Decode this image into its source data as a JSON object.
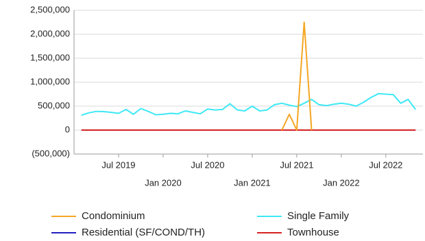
{
  "chart_data": {
    "type": "line",
    "x": [
      "2019-02",
      "2019-03",
      "2019-04",
      "2019-05",
      "2019-06",
      "2019-07",
      "2019-08",
      "2019-09",
      "2019-10",
      "2019-11",
      "2019-12",
      "2020-01",
      "2020-02",
      "2020-03",
      "2020-04",
      "2020-05",
      "2020-06",
      "2020-07",
      "2020-08",
      "2020-09",
      "2020-10",
      "2020-11",
      "2020-12",
      "2021-01",
      "2021-02",
      "2021-03",
      "2021-04",
      "2021-05",
      "2021-06",
      "2021-07",
      "2021-08",
      "2021-09",
      "2021-10",
      "2021-11",
      "2021-12",
      "2022-01",
      "2022-02",
      "2022-03",
      "2022-04",
      "2022-05",
      "2022-06",
      "2022-07",
      "2022-08",
      "2022-09",
      "2022-10",
      "2022-11"
    ],
    "series": [
      {
        "name": "Condominium",
        "color": "#f5a623",
        "values": [
          null,
          null,
          null,
          null,
          null,
          null,
          null,
          null,
          null,
          null,
          null,
          null,
          null,
          null,
          null,
          null,
          null,
          null,
          null,
          null,
          null,
          null,
          null,
          null,
          null,
          null,
          null,
          0,
          330000,
          0,
          2250000,
          0,
          null,
          null,
          null,
          null,
          null,
          null,
          null,
          null,
          null,
          null,
          null,
          null,
          null,
          null
        ]
      },
      {
        "name": "Single Family",
        "color": "#3ee8f5",
        "values": [
          310000,
          360000,
          390000,
          385000,
          370000,
          350000,
          430000,
          330000,
          450000,
          390000,
          320000,
          330000,
          350000,
          340000,
          400000,
          370000,
          340000,
          440000,
          420000,
          430000,
          550000,
          420000,
          400000,
          500000,
          400000,
          420000,
          530000,
          560000,
          520000,
          490000,
          560000,
          640000,
          530000,
          510000,
          540000,
          560000,
          540000,
          500000,
          580000,
          680000,
          760000,
          750000,
          740000,
          560000,
          640000,
          430000
        ]
      },
      {
        "name": "Residential (SF/COND/TH)",
        "color": "#1f1fbf",
        "values": [
          0,
          0,
          0,
          0,
          0,
          0,
          0,
          0,
          0,
          0,
          0,
          0,
          0,
          0,
          0,
          0,
          0,
          0,
          0,
          0,
          0,
          0,
          0,
          0,
          0,
          0,
          0,
          0,
          0,
          0,
          0,
          0,
          0,
          0,
          0,
          0,
          0,
          0,
          0,
          0,
          0,
          0,
          0,
          0,
          0,
          0
        ]
      },
      {
        "name": "Townhouse",
        "color": "#d62020",
        "values": [
          0,
          0,
          0,
          0,
          0,
          0,
          0,
          0,
          0,
          0,
          0,
          0,
          0,
          0,
          0,
          0,
          0,
          0,
          0,
          0,
          0,
          0,
          0,
          0,
          0,
          0,
          0,
          0,
          0,
          0,
          0,
          0,
          0,
          0,
          0,
          0,
          0,
          0,
          0,
          0,
          0,
          0,
          0,
          0,
          0,
          0
        ]
      }
    ],
    "xlim": [
      "2019-01",
      "2022-12"
    ],
    "xticks": [
      {
        "value": "2019-07",
        "label": "Jul 2019"
      },
      {
        "value": "2020-01",
        "label": "Jan 2020"
      },
      {
        "value": "2020-07",
        "label": "Jul 2020"
      },
      {
        "value": "2021-01",
        "label": "Jan 2021"
      },
      {
        "value": "2021-07",
        "label": "Jul 2021"
      },
      {
        "value": "2022-01",
        "label": "Jan 2022"
      },
      {
        "value": "2022-07",
        "label": "Jul 2022"
      }
    ],
    "ylim": [
      -500000,
      2500000
    ],
    "yticks": [
      {
        "value": -500000,
        "label": "(500,000)"
      },
      0,
      {
        "value": 500000,
        "label": "500,000"
      },
      {
        "value": 1000000,
        "label": "1,000,000"
      },
      {
        "value": 1500000,
        "label": "1,500,000"
      },
      {
        "value": 2000000,
        "label": "2,000,000"
      },
      {
        "value": 2500000,
        "label": "2,500,000"
      }
    ],
    "grid": true
  }
}
